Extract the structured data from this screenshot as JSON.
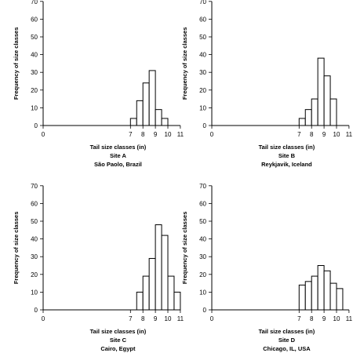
{
  "chart_data": [
    {
      "type": "bar",
      "xlabel": "Tail size classes (in)",
      "ylabel": "Frequency of size classes",
      "site": "Site A",
      "location": "São Paolo, Brazil",
      "xlim": [
        0,
        11
      ],
      "ylim": [
        0,
        70
      ],
      "xticks": [
        0,
        7,
        8,
        9,
        10,
        11
      ],
      "yticks": [
        0,
        10,
        20,
        30,
        40,
        50,
        60,
        70
      ],
      "bin_width": 0.5,
      "bins": [
        {
          "x": 7.0,
          "value": 4
        },
        {
          "x": 7.5,
          "value": 14
        },
        {
          "x": 8.0,
          "value": 24
        },
        {
          "x": 8.5,
          "value": 31
        },
        {
          "x": 9.0,
          "value": 9
        },
        {
          "x": 9.5,
          "value": 4
        }
      ]
    },
    {
      "type": "bar",
      "xlabel": "Tail size classes (in)",
      "ylabel": "Frequency of size classes",
      "site": "Site B",
      "location": "Reykjavik, Iceland",
      "xlim": [
        0,
        11
      ],
      "ylim": [
        0,
        70
      ],
      "xticks": [
        0,
        7,
        8,
        9,
        10,
        11
      ],
      "yticks": [
        0,
        10,
        20,
        30,
        40,
        50,
        60,
        70
      ],
      "bin_width": 0.5,
      "bins": [
        {
          "x": 7.0,
          "value": 4
        },
        {
          "x": 7.5,
          "value": 9
        },
        {
          "x": 8.0,
          "value": 15
        },
        {
          "x": 8.5,
          "value": 38
        },
        {
          "x": 9.0,
          "value": 28
        },
        {
          "x": 9.5,
          "value": 15
        }
      ]
    },
    {
      "type": "bar",
      "xlabel": "Tail size classes (in)",
      "ylabel": "Frequency of size classes",
      "site": "Site C",
      "location": "Cairo, Egypt",
      "xlim": [
        0,
        11
      ],
      "ylim": [
        0,
        70
      ],
      "xticks": [
        0,
        7,
        8,
        9,
        10,
        11
      ],
      "yticks": [
        0,
        10,
        20,
        30,
        40,
        50,
        60,
        70
      ],
      "bin_width": 0.5,
      "bins": [
        {
          "x": 7.5,
          "value": 10
        },
        {
          "x": 8.0,
          "value": 19
        },
        {
          "x": 8.5,
          "value": 29
        },
        {
          "x": 9.0,
          "value": 48
        },
        {
          "x": 9.5,
          "value": 42
        },
        {
          "x": 10.0,
          "value": 19
        },
        {
          "x": 10.5,
          "value": 10
        }
      ]
    },
    {
      "type": "bar",
      "xlabel": "Tail size classes (in)",
      "ylabel": "Frequency of size classes",
      "site": "Site D",
      "location": "Chicago, IL, USA",
      "xlim": [
        0,
        11
      ],
      "ylim": [
        0,
        70
      ],
      "xticks": [
        0,
        7,
        8,
        9,
        10,
        11
      ],
      "yticks": [
        0,
        10,
        20,
        30,
        40,
        50,
        60,
        70
      ],
      "bin_width": 0.5,
      "bins": [
        {
          "x": 7.0,
          "value": 14
        },
        {
          "x": 7.5,
          "value": 16
        },
        {
          "x": 8.0,
          "value": 19
        },
        {
          "x": 8.5,
          "value": 25
        },
        {
          "x": 9.0,
          "value": 22
        },
        {
          "x": 9.5,
          "value": 15
        },
        {
          "x": 10.0,
          "value": 12
        }
      ]
    }
  ]
}
